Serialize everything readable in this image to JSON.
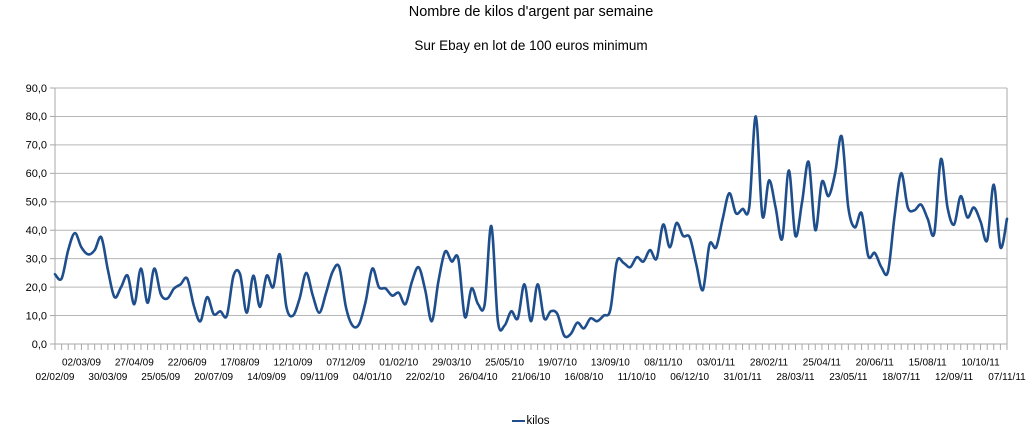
{
  "chart": {
    "title": "Nombre de kilos d'argent par semaine",
    "subtitle": "Sur Ebay en lot de 100 euros minimum",
    "legend": {
      "label": "kilos"
    }
  },
  "colors": {
    "series": "#1f4e8c",
    "grid": "#b6b6b6",
    "axis": "#a8a8a8",
    "text": "#000000",
    "background": "#ffffff"
  },
  "chart_data": {
    "type": "line",
    "title": "Nombre de kilos d'argent par semaine",
    "subtitle": "Sur Ebay en lot de 100 euros minimum",
    "xlabel": "",
    "ylabel": "",
    "ylim": [
      0,
      90
    ],
    "ytick_interval": 10,
    "ytick_labels": [
      "90,0",
      "80,0",
      "70,0",
      "60,0",
      "50,0",
      "40,0",
      "30,0",
      "20,0",
      "10,0",
      "0,0"
    ],
    "grid": "horizontal",
    "line_style": "smooth",
    "legend_position": "bottom-center",
    "x_label_interval": 4,
    "x_label_rows": "alternating, even-index labels on lower row, odd-index on upper row",
    "x_labels": [
      "02/02/09",
      "02/03/09",
      "30/03/09",
      "27/04/09",
      "25/05/09",
      "22/06/09",
      "20/07/09",
      "17/08/09",
      "14/09/09",
      "12/10/09",
      "09/11/09",
      "07/12/09",
      "04/01/10",
      "01/02/10",
      "22/02/10",
      "29/03/10",
      "26/04/10",
      "25/05/10",
      "21/06/10",
      "19/07/10",
      "16/08/10",
      "13/09/10",
      "11/10/10",
      "08/11/10",
      "06/12/10",
      "03/01/11",
      "31/01/11",
      "28/02/11",
      "28/03/11",
      "25/04/11",
      "23/05/11",
      "20/06/11",
      "18/07/11",
      "15/08/11",
      "12/09/11",
      "10/10/11",
      "07/11/11"
    ],
    "series": [
      {
        "name": "kilos",
        "color": "#1f4e8c",
        "values": [
          24.5,
          23,
          33,
          39,
          34,
          31.5,
          33,
          37.5,
          26,
          16.5,
          20,
          24,
          14,
          26.5,
          14.5,
          26.5,
          17.5,
          16,
          19.5,
          21,
          23,
          13.5,
          8,
          16.5,
          10.5,
          11.5,
          10,
          24,
          24.5,
          11,
          24,
          13,
          24,
          20,
          31.5,
          13,
          10,
          16,
          25,
          17,
          11,
          18,
          25.5,
          27,
          13,
          6.5,
          7,
          15,
          26.5,
          20,
          19.5,
          17,
          18,
          14,
          22,
          27,
          19,
          8,
          22,
          32.5,
          29,
          30,
          9.5,
          19.5,
          14,
          14,
          41.5,
          8,
          6.5,
          11.5,
          9,
          21,
          8,
          21,
          9,
          11.5,
          10.5,
          3,
          3.5,
          7.5,
          5.5,
          9,
          8,
          10,
          12,
          29,
          28.5,
          27,
          30.5,
          29,
          33,
          30,
          42,
          34,
          42.5,
          38,
          37.5,
          28,
          19,
          35,
          34,
          44,
          53,
          46,
          47.5,
          48,
          80,
          45,
          57.5,
          48,
          37,
          61,
          38,
          50,
          64,
          40,
          57,
          52,
          60,
          73,
          48,
          41,
          46,
          31,
          32,
          27,
          25.5,
          45,
          60,
          48,
          47,
          49,
          44,
          39,
          65,
          48,
          42,
          52,
          44.5,
          48,
          43,
          36.5,
          56,
          34,
          44
        ]
      }
    ]
  }
}
